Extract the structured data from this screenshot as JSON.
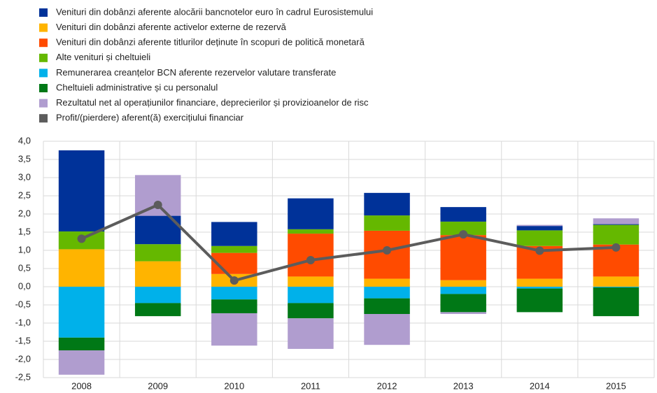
{
  "chart_data": {
    "type": "bar",
    "stacked": true,
    "categories": [
      "2008",
      "2009",
      "2010",
      "2011",
      "2012",
      "2013",
      "2014",
      "2015"
    ],
    "series": [
      {
        "name": "Venituri din dobânzi aferente alocării bancnotelor euro în cadrul Eurosistemului",
        "color": "#003299",
        "values": [
          2.23,
          0.78,
          0.66,
          0.85,
          0.62,
          0.4,
          0.12,
          0.02
        ]
      },
      {
        "name": "Venituri din dobânzi aferente activelor externe de rezervă",
        "color": "#ffb400",
        "values": [
          1.03,
          0.7,
          0.35,
          0.28,
          0.22,
          0.18,
          0.22,
          0.28
        ]
      },
      {
        "name": "Venituri din dobânzi aferente titlurilor deținute în scopuri de politică monetară",
        "color": "#ff4b00",
        "values": [
          0,
          0,
          0.58,
          1.18,
          1.32,
          1.24,
          0.9,
          0.88
        ]
      },
      {
        "name": "Alte venituri și cheltuieli",
        "color": "#65b800",
        "values": [
          0.49,
          0.47,
          0.19,
          0.12,
          0.42,
          0.37,
          0.43,
          0.54
        ]
      },
      {
        "name": "Remunerarea creanțelor BCN aferente rezervelor valutare transferate",
        "color": "#00b1ea",
        "values": [
          -1.4,
          -0.45,
          -0.35,
          -0.45,
          -0.32,
          -0.2,
          -0.05,
          -0.02
        ]
      },
      {
        "name": "Cheltuieli administrative și cu personalul",
        "color": "#007816",
        "values": [
          -0.35,
          -0.36,
          -0.38,
          -0.42,
          -0.43,
          -0.5,
          -0.65,
          -0.79
        ]
      },
      {
        "name": "Rezultatul net al operațiunilor financiare, deprecierilor și provizioanelor de risc",
        "color": "#b09dcf",
        "values": [
          -0.67,
          1.12,
          -0.89,
          -0.84,
          -0.85,
          -0.05,
          0.03,
          0.16
        ]
      },
      {
        "name": "Profit/(pierdere) aferent(ă) exercițiului financiar",
        "color": "#5c5c5c",
        "type": "line",
        "values": [
          1.32,
          2.25,
          0.17,
          0.73,
          1.0,
          1.44,
          0.99,
          1.08
        ]
      }
    ],
    "ylim": [
      -2.5,
      4.0
    ],
    "yticks": [
      {
        "value": -2.5,
        "label": "-2,5"
      },
      {
        "value": -2.0,
        "label": "-2,0"
      },
      {
        "value": -1.5,
        "label": "-1,5"
      },
      {
        "value": -1.0,
        "label": "-1,0"
      },
      {
        "value": -0.5,
        "label": "-0,5"
      },
      {
        "value": 0,
        "label": "0,0"
      },
      {
        "value": 0.5,
        "label": "0,5"
      },
      {
        "value": 1.0,
        "label": "1,0"
      },
      {
        "value": 1.5,
        "label": "1,5"
      },
      {
        "value": 2.0,
        "label": "2,0"
      },
      {
        "value": 2.5,
        "label": "2,5"
      },
      {
        "value": 3.0,
        "label": "3,0"
      },
      {
        "value": 3.5,
        "label": "3,5"
      },
      {
        "value": 4.0,
        "label": "4,0"
      }
    ],
    "grid": true,
    "legend": "top-left"
  }
}
